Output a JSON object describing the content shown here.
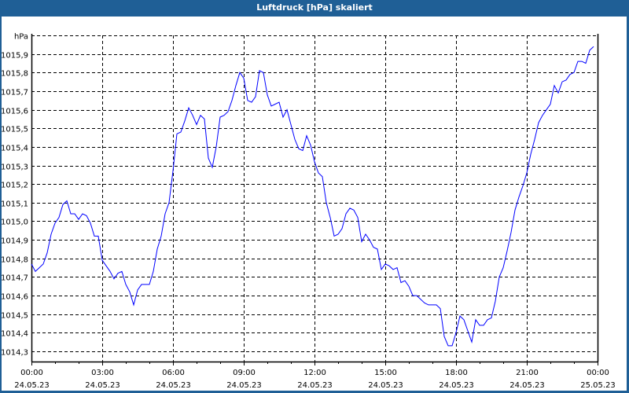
{
  "window": {
    "title": "Luftdruck [hPa] skaliert"
  },
  "chart_data": {
    "type": "line",
    "title": "Luftdruck [hPa] skaliert",
    "ylabel": "hPa",
    "xlabel": "",
    "ylim": [
      1014.245,
      1016.0
    ],
    "xlim_hours": [
      0,
      24
    ],
    "y_ticks": [
      {
        "value": 1014.3,
        "label": "1014,3"
      },
      {
        "value": 1014.4,
        "label": "1014,4"
      },
      {
        "value": 1014.5,
        "label": "1014,5"
      },
      {
        "value": 1014.6,
        "label": "1014,6"
      },
      {
        "value": 1014.7,
        "label": "1014,7"
      },
      {
        "value": 1014.8,
        "label": "1014,8"
      },
      {
        "value": 1014.9,
        "label": "1014,9"
      },
      {
        "value": 1015.0,
        "label": "1015,0"
      },
      {
        "value": 1015.1,
        "label": "1015,1"
      },
      {
        "value": 1015.2,
        "label": "1015,2"
      },
      {
        "value": 1015.3,
        "label": "1015,3"
      },
      {
        "value": 1015.4,
        "label": "1015,4"
      },
      {
        "value": 1015.5,
        "label": "1015,5"
      },
      {
        "value": 1015.6,
        "label": "1015,6"
      },
      {
        "value": 1015.7,
        "label": "1015,7"
      },
      {
        "value": 1015.8,
        "label": "1015,8"
      },
      {
        "value": 1015.9,
        "label": "1015,9"
      },
      {
        "value": 1016.0,
        "label": "hPa"
      }
    ],
    "x_ticks": [
      {
        "hour": 0,
        "time": "00:00",
        "date": "24.05.23"
      },
      {
        "hour": 3,
        "time": "03:00",
        "date": "24.05.23"
      },
      {
        "hour": 6,
        "time": "06:00",
        "date": "24.05.23"
      },
      {
        "hour": 9,
        "time": "09:00",
        "date": "24.05.23"
      },
      {
        "hour": 12,
        "time": "12:00",
        "date": "24.05.23"
      },
      {
        "hour": 15,
        "time": "15:00",
        "date": "24.05.23"
      },
      {
        "hour": 18,
        "time": "18:00",
        "date": "24.05.23"
      },
      {
        "hour": 21,
        "time": "21:00",
        "date": "24.05.23"
      },
      {
        "hour": 24,
        "time": "00:00",
        "date": "25.05.23"
      }
    ],
    "grid": true,
    "series": [
      {
        "name": "Luftdruck",
        "color": "#0000ff",
        "interval_minutes": 10,
        "values": [
          1014.77,
          1014.73,
          1014.75,
          1014.77,
          1014.83,
          1014.93,
          1014.99,
          1015.02,
          1015.09,
          1015.11,
          1015.04,
          1015.04,
          1015.01,
          1015.04,
          1015.03,
          1014.99,
          1014.92,
          1014.92,
          1014.79,
          1014.76,
          1014.73,
          1014.69,
          1014.72,
          1014.73,
          1014.66,
          1014.62,
          1014.55,
          1014.63,
          1014.66,
          1014.66,
          1014.66,
          1014.73,
          1014.85,
          1014.92,
          1015.04,
          1015.1,
          1015.27,
          1015.47,
          1015.48,
          1015.54,
          1015.61,
          1015.57,
          1015.52,
          1015.57,
          1015.55,
          1015.34,
          1015.29,
          1015.4,
          1015.56,
          1015.57,
          1015.59,
          1015.65,
          1015.73,
          1015.8,
          1015.77,
          1015.65,
          1015.64,
          1015.67,
          1015.81,
          1015.8,
          1015.68,
          1015.62,
          1015.63,
          1015.64,
          1015.56,
          1015.6,
          1015.52,
          1015.44,
          1015.39,
          1015.38,
          1015.46,
          1015.41,
          1015.32,
          1015.26,
          1015.24,
          1015.1,
          1015.02,
          1014.92,
          1014.93,
          1014.96,
          1015.04,
          1015.07,
          1015.06,
          1015.02,
          1014.89,
          1014.93,
          1014.9,
          1014.86,
          1014.85,
          1014.74,
          1014.77,
          1014.76,
          1014.74,
          1014.75,
          1014.67,
          1014.68,
          1014.65,
          1014.6,
          1014.6,
          1014.58,
          1014.56,
          1014.55,
          1014.55,
          1014.55,
          1014.53,
          1014.38,
          1014.33,
          1014.33,
          1014.4,
          1014.49,
          1014.47,
          1014.41,
          1014.35,
          1014.47,
          1014.44,
          1014.44,
          1014.47,
          1014.48,
          1014.57,
          1014.7,
          1014.75,
          1014.84,
          1014.94,
          1015.06,
          1015.13,
          1015.19,
          1015.26,
          1015.36,
          1015.44,
          1015.53,
          1015.57,
          1015.6,
          1015.63,
          1015.73,
          1015.69,
          1015.75,
          1015.76,
          1015.79,
          1015.8,
          1015.86,
          1015.86,
          1015.85,
          1015.92,
          1015.94
        ]
      }
    ]
  }
}
